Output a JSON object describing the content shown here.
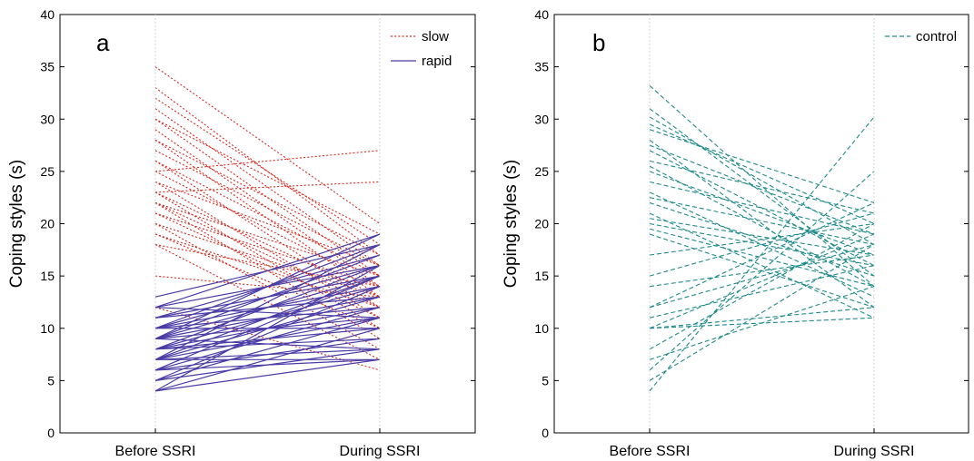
{
  "chart_data": [
    {
      "type": "line",
      "panel_label": "a",
      "categories": [
        "Before SSRI",
        "During SSRI"
      ],
      "ylabel": "Coping styles (s)",
      "ylim": [
        0,
        40
      ],
      "yticks": [
        0,
        5,
        10,
        15,
        20,
        25,
        30,
        35,
        40
      ],
      "grid": false,
      "legend_position": "top-right",
      "series": [
        {
          "name": "slow",
          "color": "#d42a1e",
          "style": "dotted",
          "lines": [
            [
              35,
              20
            ],
            [
              33,
              17
            ],
            [
              32,
              18
            ],
            [
              31,
              16
            ],
            [
              30,
              19
            ],
            [
              30,
              15
            ],
            [
              29,
              14
            ],
            [
              28,
              17
            ],
            [
              28,
              13
            ],
            [
              27,
              16
            ],
            [
              26,
              15
            ],
            [
              26,
              12
            ],
            [
              25,
              27
            ],
            [
              25,
              14
            ],
            [
              24,
              16
            ],
            [
              24,
              11
            ],
            [
              23,
              24
            ],
            [
              23,
              13
            ],
            [
              23,
              10
            ],
            [
              22,
              15
            ],
            [
              22,
              12
            ],
            [
              22,
              9
            ],
            [
              21,
              14
            ],
            [
              21,
              11
            ],
            [
              20,
              13
            ],
            [
              20,
              8
            ],
            [
              19,
              12
            ],
            [
              19,
              10
            ],
            [
              18,
              14
            ],
            [
              18,
              7
            ],
            [
              15,
              13
            ],
            [
              12,
              6
            ]
          ]
        },
        {
          "name": "rapid",
          "color": "#4a3ca6",
          "style": "solid",
          "lines": [
            [
              13,
              18
            ],
            [
              12,
              19
            ],
            [
              12,
              16
            ],
            [
              12,
              11
            ],
            [
              11,
              17
            ],
            [
              11,
              15
            ],
            [
              11,
              13
            ],
            [
              10,
              18
            ],
            [
              10,
              16
            ],
            [
              10,
              14
            ],
            [
              10,
              12
            ],
            [
              10,
              10
            ],
            [
              9,
              19
            ],
            [
              9,
              17
            ],
            [
              9,
              15
            ],
            [
              9,
              13
            ],
            [
              9,
              11
            ],
            [
              9,
              8
            ],
            [
              8,
              16
            ],
            [
              8,
              14
            ],
            [
              8,
              12
            ],
            [
              8,
              10
            ],
            [
              8,
              9
            ],
            [
              7,
              18
            ],
            [
              7,
              15
            ],
            [
              7,
              13
            ],
            [
              7,
              11
            ],
            [
              7,
              8
            ],
            [
              7,
              7
            ],
            [
              6,
              15
            ],
            [
              6,
              12
            ],
            [
              6,
              9
            ],
            [
              6,
              7
            ],
            [
              5,
              14
            ],
            [
              5,
              11
            ],
            [
              5,
              8
            ],
            [
              4,
              16
            ],
            [
              4,
              10
            ],
            [
              4,
              7
            ]
          ]
        }
      ]
    },
    {
      "type": "line",
      "panel_label": "b",
      "categories": [
        "Before SSRI",
        "During SSRI"
      ],
      "ylabel": "Coping styles (s)",
      "ylim": [
        0,
        40
      ],
      "yticks": [
        0,
        5,
        10,
        15,
        20,
        25,
        30,
        35,
        40
      ],
      "grid": false,
      "legend_position": "top-right",
      "series": [
        {
          "name": "control",
          "color": "#1f8a8a",
          "style": "dashed",
          "lines": [
            [
              33.2,
              14
            ],
            [
              31,
              15
            ],
            [
              30.2,
              18
            ],
            [
              29.5,
              20
            ],
            [
              29,
              22
            ],
            [
              28,
              12
            ],
            [
              27.5,
              19
            ],
            [
              27,
              16
            ],
            [
              26,
              21
            ],
            [
              25.5,
              14
            ],
            [
              25,
              17
            ],
            [
              24,
              19
            ],
            [
              23,
              13
            ],
            [
              22.5,
              18
            ],
            [
              22,
              15
            ],
            [
              21,
              11
            ],
            [
              20.5,
              17
            ],
            [
              20,
              16
            ],
            [
              19.5,
              14
            ],
            [
              19,
              12
            ],
            [
              17,
              20
            ],
            [
              15,
              21
            ],
            [
              14,
              17
            ],
            [
              12,
              22
            ],
            [
              12,
              18
            ],
            [
              11,
              16
            ],
            [
              10,
              19
            ],
            [
              10,
              12
            ],
            [
              10,
              11
            ],
            [
              8,
              20
            ],
            [
              7,
              14
            ],
            [
              6,
              25
            ],
            [
              5,
              18
            ],
            [
              4,
              30.2
            ]
          ]
        }
      ]
    }
  ]
}
